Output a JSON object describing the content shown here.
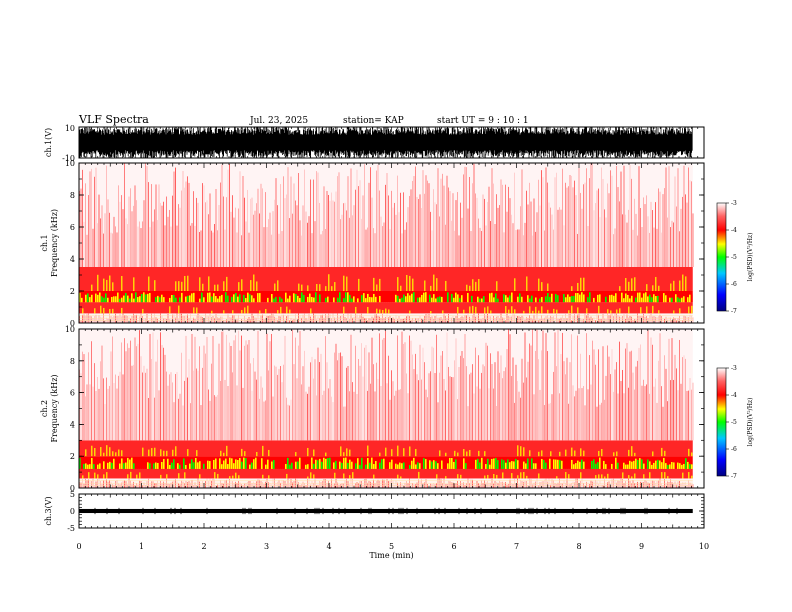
{
  "header": {
    "title": "VLF Spectra",
    "date": "Jul. 23, 2025",
    "station": "station= KAP",
    "start": "start UT =  9 : 10 : 1"
  },
  "colors": {
    "background": "#ffffff",
    "axis": "#000000",
    "spec_low": "#000080",
    "spec_blue": "#0000ff",
    "spec_cyan": "#00c8ff",
    "spec_green": "#00ff00",
    "spec_yellow": "#ffff00",
    "spec_red": "#ff0000",
    "spec_pink": "#ffc8c8"
  },
  "chart_data": [
    {
      "type": "line",
      "name": "ch1-waveform",
      "ylabel": "ch.1(V)",
      "ylim": [
        -10,
        10
      ],
      "ytick_labels": [
        "10",
        "-10"
      ],
      "x_range_min": [
        0,
        9.82
      ],
      "description_series": "dense noise-like waveform filling most of +/-10 V"
    },
    {
      "type": "heatmap",
      "name": "ch1-spectrogram",
      "ylabel": "ch.1 Frequency (kHz)",
      "ylim": [
        0,
        10
      ],
      "ytick_labels": [
        "0",
        "2",
        "4",
        "6",
        "8",
        "10"
      ],
      "colorbar": {
        "label": "log(PSD)(V²/Hz)",
        "range": [
          -7,
          -3
        ],
        "tick_labels": [
          "-3",
          "-4",
          "-5",
          "-6",
          "-7"
        ]
      },
      "bands_khz": [
        {
          "from": 0,
          "to": 0.6,
          "level": -3.2
        },
        {
          "from": 0.6,
          "to": 1.3,
          "level": -4.2
        },
        {
          "from": 1.3,
          "to": 2.0,
          "level": -4.8
        },
        {
          "from": 2.0,
          "to": 3.5,
          "level": -3.8
        },
        {
          "from": 3.5,
          "to": 10,
          "level": -3.3
        }
      ]
    },
    {
      "type": "heatmap",
      "name": "ch2-spectrogram",
      "ylabel": "ch.2 Frequency (kHz)",
      "ylim": [
        0,
        10
      ],
      "ytick_labels": [
        "0",
        "2",
        "4",
        "6",
        "8",
        "10"
      ],
      "colorbar": {
        "label": "log(PSD)(V²/Hz)",
        "range": [
          -7,
          -3
        ],
        "tick_labels": [
          "-3",
          "-4",
          "-5",
          "-6",
          "-7"
        ]
      },
      "bands_khz": [
        {
          "from": 0,
          "to": 0.6,
          "level": -3.2
        },
        {
          "from": 0.6,
          "to": 1.2,
          "level": -4.2
        },
        {
          "from": 1.2,
          "to": 2.0,
          "level": -4.9
        },
        {
          "from": 2.0,
          "to": 3.0,
          "level": -3.8
        },
        {
          "from": 3.0,
          "to": 10,
          "level": -3.3
        }
      ]
    },
    {
      "type": "line",
      "name": "ch3-waveform",
      "ylabel": "ch.3(V)",
      "ylim": [
        -5,
        5
      ],
      "ytick_labels": [
        "5",
        "0",
        "-5"
      ],
      "level_v": 0,
      "amplitude_v": 0.6
    }
  ],
  "xaxis": {
    "label": "Time (min)",
    "range": [
      0,
      10
    ],
    "data_end": 9.82,
    "tick_labels": [
      "0",
      "1",
      "2",
      "3",
      "4",
      "5",
      "6",
      "7",
      "8",
      "9",
      "10"
    ]
  }
}
